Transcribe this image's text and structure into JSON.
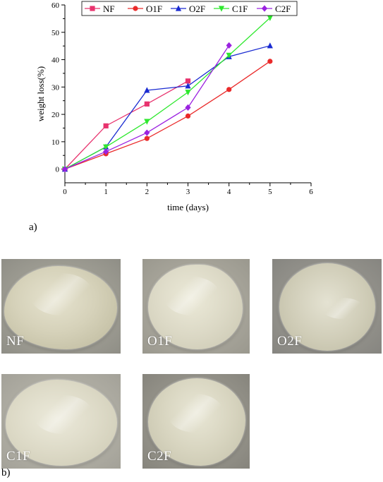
{
  "chart_data": {
    "type": "line",
    "xlabel": "time (days)",
    "ylabel": "weight loss(%)",
    "xlim": [
      0,
      6
    ],
    "ylim": [
      -5,
      60
    ],
    "xticks": [
      "0",
      "1",
      "2",
      "3",
      "4",
      "5",
      "6"
    ],
    "yticks": [
      "0",
      "10",
      "20",
      "30",
      "40",
      "50",
      "60"
    ],
    "legend_position": "top",
    "series": [
      {
        "name": "NF",
        "color": "#e8336e",
        "marker": "square",
        "x": [
          0,
          1,
          2,
          3
        ],
        "values": [
          0,
          15.8,
          23.8,
          32.2
        ]
      },
      {
        "name": "O1F",
        "color": "#ea2a2a",
        "marker": "circle",
        "x": [
          0,
          1,
          2,
          3,
          4,
          5
        ],
        "values": [
          0,
          5.6,
          11.2,
          19.4,
          29.1,
          39.4
        ]
      },
      {
        "name": "O2F",
        "color": "#1a2bd1",
        "marker": "triangle-up",
        "x": [
          0,
          1,
          2,
          3,
          4,
          5
        ],
        "values": [
          0,
          8.1,
          28.8,
          30.4,
          41.1,
          45.1
        ]
      },
      {
        "name": "C1F",
        "color": "#2ee82e",
        "marker": "triangle-down",
        "x": [
          0,
          1,
          2,
          3,
          4,
          5
        ],
        "values": [
          0,
          8.1,
          17.4,
          28.1,
          41.6,
          55.3
        ]
      },
      {
        "name": "C2F",
        "color": "#9b22e0",
        "marker": "diamond",
        "x": [
          0,
          1,
          2,
          3,
          4
        ],
        "values": [
          0,
          6.4,
          13.3,
          22.5,
          45.2
        ]
      }
    ]
  },
  "panel_a_label": "a)",
  "panel_b_label": "b)",
  "photos": [
    {
      "label": "NF"
    },
    {
      "label": "O1F"
    },
    {
      "label": "O2F"
    },
    {
      "label": "C1F"
    },
    {
      "label": "C2F"
    }
  ]
}
